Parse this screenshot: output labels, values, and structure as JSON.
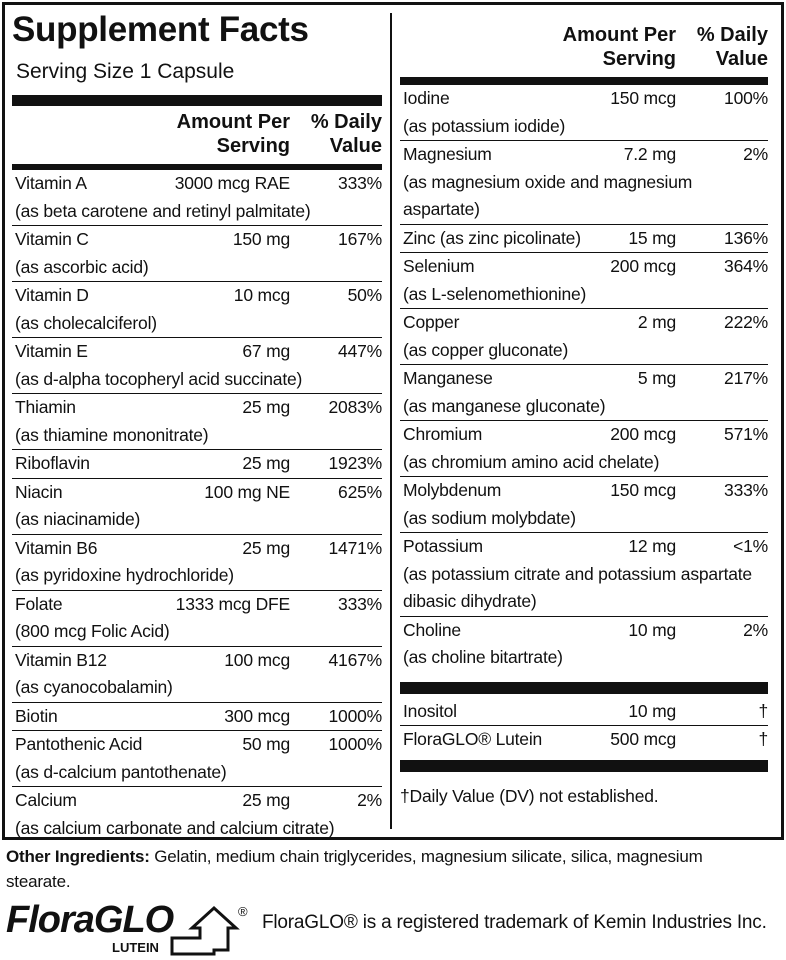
{
  "title": "Supplement Facts",
  "serving_size": "Serving Size 1 Capsule",
  "header": {
    "amount": [
      "Amount Per",
      "Serving"
    ],
    "dv": [
      "% Daily",
      "Value"
    ]
  },
  "left": {
    "rows": [
      {
        "name": "Vitamin A",
        "amount": "3000 mcg RAE",
        "dv": "333%",
        "note": "(as beta carotene and retinyl palmitate)"
      },
      {
        "name": "Vitamin C",
        "amount": "150 mg",
        "dv": "167%",
        "note": "(as ascorbic acid)"
      },
      {
        "name": "Vitamin D",
        "amount": "10 mcg",
        "dv": "50%",
        "note": "(as cholecalciferol)"
      },
      {
        "name": "Vitamin E",
        "amount": "67 mg",
        "dv": "447%",
        "note": "(as d-alpha tocopheryl acid succinate)"
      },
      {
        "name": "Thiamin",
        "amount": "25 mg",
        "dv": "2083%",
        "note": "(as thiamine mononitrate)"
      },
      {
        "name": "Riboflavin",
        "amount": "25 mg",
        "dv": "1923%"
      },
      {
        "name": "Niacin",
        "amount": "100 mg NE",
        "dv": "625%",
        "note": "(as niacinamide)"
      },
      {
        "name": "Vitamin B6",
        "amount": "25 mg",
        "dv": "1471%",
        "note": "(as pyridoxine hydrochloride)"
      },
      {
        "name": "Folate",
        "amount": "1333 mcg DFE",
        "dv": "333%",
        "note": "(800 mcg Folic Acid)"
      },
      {
        "name": "Vitamin B12",
        "amount": "100 mcg",
        "dv": "4167%",
        "note": "(as cyanocobalamin)"
      },
      {
        "name": "Biotin",
        "amount": "300 mcg",
        "dv": "1000%"
      },
      {
        "name": "Pantothenic Acid",
        "amount": "50 mg",
        "dv": "1000%",
        "note": "(as d-calcium pantothenate)"
      },
      {
        "name": "Calcium",
        "amount": "25 mg",
        "dv": "2%",
        "note": "(as calcium carbonate and calcium citrate)"
      }
    ]
  },
  "right": {
    "rows": [
      {
        "name": "Iodine",
        "amount": "150 mcg",
        "dv": "100%",
        "note": "(as potassium iodide)"
      },
      {
        "name": "Magnesium",
        "amount": "7.2 mg",
        "dv": "2%",
        "note": "(as magnesium oxide and magnesium aspartate)"
      },
      {
        "name": "Zinc (as zinc picolinate)",
        "amount": "15 mg",
        "dv": "136%"
      },
      {
        "name": "Selenium",
        "amount": "200 mcg",
        "dv": "364%",
        "note": "(as L-selenomethionine)"
      },
      {
        "name": "Copper",
        "amount": "2 mg",
        "dv": "222%",
        "note": "(as copper gluconate)"
      },
      {
        "name": "Manganese",
        "amount": "5 mg",
        "dv": "217%",
        "note": "(as manganese gluconate)"
      },
      {
        "name": "Chromium",
        "amount": "200 mcg",
        "dv": "571%",
        "note": "(as chromium amino acid chelate)"
      },
      {
        "name": "Molybdenum",
        "amount": "150 mcg",
        "dv": "333%",
        "note": "(as sodium molybdate)"
      },
      {
        "name": "Potassium",
        "amount": "12 mg",
        "dv": "<1%",
        "note": "(as potassium citrate and potassium aspartate dibasic dihydrate)"
      },
      {
        "name": "Choline",
        "amount": "10 mg",
        "dv": "2%",
        "note": "(as choline bitartrate)"
      }
    ],
    "extra_rows": [
      {
        "name": "Inositol",
        "amount": "10 mg",
        "dv": "†"
      },
      {
        "name": "FloraGLO® Lutein",
        "amount": "500 mcg",
        "dv": "†"
      }
    ],
    "footnote": "†Daily Value (DV) not established."
  },
  "other_ingredients": {
    "label": "Other Ingredients:",
    "text": "Gelatin, medium chain triglycerides, magnesium silicate, silica, magnesium stearate."
  },
  "logo": {
    "brand": "FloraGLO",
    "sub": "LUTEIN",
    "mark": "®"
  },
  "trademark": "FloraGLO® is a registered trademark of Kemin Industries Inc."
}
